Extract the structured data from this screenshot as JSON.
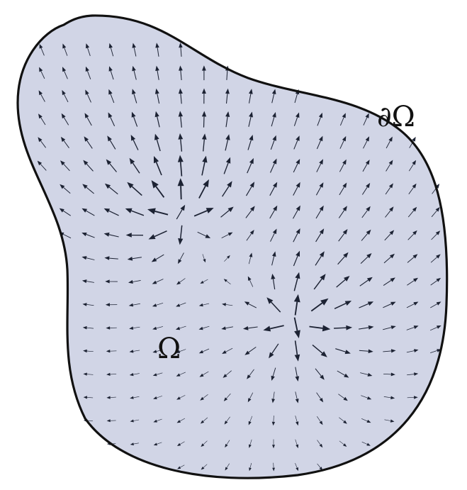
{
  "labels": {
    "domain": "Ω",
    "boundary": "∂Ω"
  },
  "colors": {
    "domain_fill": "#d1d5e6",
    "boundary_stroke": "#111111",
    "arrow": "#1c2233"
  }
}
